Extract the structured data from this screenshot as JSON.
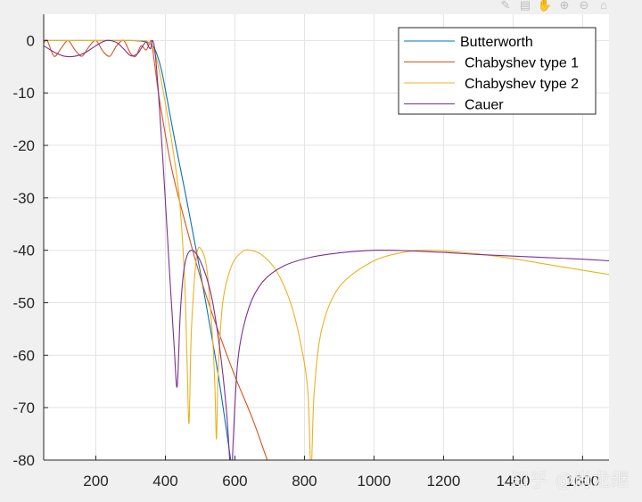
{
  "toolbar": {
    "icons": [
      "brush-icon",
      "data-tips-icon",
      "pan-icon",
      "zoom-in-icon",
      "zoom-out-icon",
      "home-icon"
    ],
    "glyphs": [
      "✎",
      "▤",
      "✋",
      "⊕",
      "⊖",
      "⌂"
    ]
  },
  "watermark": "知乎 @尚龙继",
  "chart_data": {
    "type": "line",
    "title": "",
    "xlabel": "",
    "ylabel": "",
    "xlim": [
      50,
      1676
    ],
    "ylim": [
      -80,
      5
    ],
    "grid": true,
    "legend_position": "northeast",
    "xticks": [
      200,
      400,
      600,
      800,
      1000,
      1200,
      1400,
      1600
    ],
    "yticks": [
      0,
      -10,
      -20,
      -30,
      -40,
      -50,
      -60,
      -70,
      -80
    ],
    "series": [
      {
        "name": "Butterworth",
        "color": "#0072BD",
        "x": [
          50,
          200,
          300,
          330,
          350,
          365,
          375,
          390,
          410,
          430,
          460,
          500,
          550,
          588
        ],
        "y": [
          0,
          0,
          0,
          -0.1,
          -0.4,
          -1.2,
          -2.5,
          -6,
          -13,
          -20,
          -30,
          -44,
          -63,
          -80
        ]
      },
      {
        "name": "Chabyshev type 1",
        "color": "#D95319",
        "x": [
          50,
          60,
          80,
          100,
          120,
          140,
          160,
          180,
          200,
          220,
          240,
          260,
          280,
          300,
          315,
          330,
          345,
          358,
          362,
          370,
          380,
          400,
          420,
          450,
          500,
          550,
          600,
          650,
          693
        ],
        "y": [
          -0.5,
          0,
          -3,
          -1.5,
          0,
          -1.8,
          -3,
          -1.2,
          0,
          -2,
          -3,
          -1,
          0,
          -2.5,
          -3,
          -1,
          -1.8,
          0,
          -1,
          -5,
          -10,
          -18,
          -25,
          -33,
          -45,
          -55,
          -64,
          -72,
          -80
        ]
      },
      {
        "name": "Chabyshev type 2",
        "color": "#EDB120",
        "x": [
          50,
          200,
          330,
          350,
          365,
          380,
          400,
          420,
          440,
          455,
          462,
          468,
          475,
          490,
          505,
          520,
          535,
          542,
          547,
          552,
          565,
          590,
          620,
          646,
          680,
          720,
          760,
          790,
          810,
          819,
          828,
          850,
          900,
          1000,
          1100,
          1150,
          1200,
          1300,
          1400,
          1500,
          1600,
          1676
        ],
        "y": [
          0,
          0,
          0,
          -0.3,
          -1.5,
          -5,
          -12,
          -20,
          -30,
          -45,
          -60,
          -73,
          -55,
          -41,
          -40,
          -44,
          -56,
          -65,
          -76,
          -63,
          -50,
          -43,
          -40.3,
          -40,
          -41,
          -44,
          -50,
          -58,
          -67,
          -82,
          -67,
          -55,
          -47,
          -42,
          -40.2,
          -40,
          -40.1,
          -40.7,
          -41.6,
          -42.7,
          -43.8,
          -44.6
        ]
      },
      {
        "name": "Cauer",
        "color": "#7E2F8E",
        "x": [
          50,
          80,
          110,
          140,
          170,
          200,
          230,
          260,
          280,
          300,
          320,
          335,
          345,
          352,
          358,
          363,
          370,
          380,
          395,
          410,
          425,
          434,
          443,
          455,
          474,
          500,
          530,
          555,
          575,
          585,
          590,
          596,
          610,
          640,
          680,
          740,
          820,
          900,
          1000,
          1100,
          1200,
          1300,
          1400,
          1500,
          1600,
          1676
        ],
        "y": [
          -1,
          -2.2,
          -3,
          -3,
          -2.3,
          -1,
          0,
          -0.4,
          -1.6,
          -2.9,
          -2.5,
          -1,
          -0.3,
          -1.2,
          -1.5,
          0,
          -2,
          -10,
          -25,
          -42,
          -58,
          -66,
          -52,
          -43,
          -40,
          -42,
          -48,
          -58,
          -70,
          -80,
          -85,
          -75,
          -60,
          -51,
          -46,
          -43,
          -41.3,
          -40.5,
          -40,
          -40.1,
          -40.4,
          -40.8,
          -41.1,
          -41.4,
          -41.7,
          -42
        ]
      }
    ]
  }
}
